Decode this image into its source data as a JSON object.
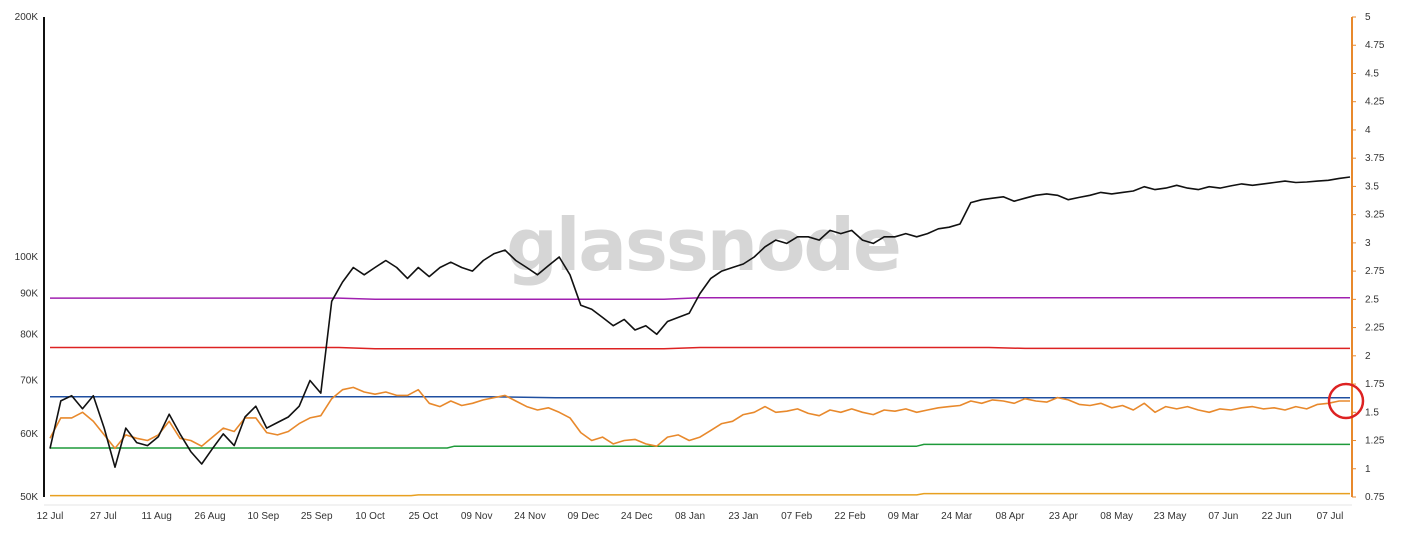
{
  "watermark": "glassnode",
  "colors": {
    "price": "#111111",
    "ratio": "#e8892c",
    "purple": "#a020b0",
    "red": "#dd2222",
    "blue": "#1f4fa0",
    "green": "#1e9a3a",
    "gold": "#e8a020",
    "right_axis": "#e8892c",
    "highlight": "#dd2222"
  },
  "chart_data": {
    "type": "line",
    "title": "",
    "x_tick_labels": [
      "12 Jul",
      "27 Jul",
      "11 Aug",
      "26 Aug",
      "10 Sep",
      "25 Sep",
      "10 Oct",
      "25 Oct",
      "09 Nov",
      "24 Nov",
      "09 Dec",
      "24 Dec",
      "08 Jan",
      "23 Jan",
      "07 Feb",
      "22 Feb",
      "09 Mar",
      "24 Mar",
      "08 Apr",
      "23 Apr",
      "08 May",
      "23 May",
      "07 Jun",
      "22 Jun",
      "07 Jul"
    ],
    "left_axis": {
      "scale": "log",
      "ylim": [
        50000,
        200000
      ],
      "tick_values": [
        50000,
        60000,
        70000,
        80000,
        90000,
        100000,
        200000
      ],
      "tick_labels": [
        "50K",
        "60K",
        "70K",
        "80K",
        "90K",
        "100K",
        "200K"
      ]
    },
    "right_axis": {
      "scale": "linear",
      "ylim": [
        0.75,
        5
      ],
      "tick_values": [
        0.75,
        1,
        1.25,
        1.5,
        1.75,
        2,
        2.25,
        2.5,
        2.75,
        3,
        3.25,
        3.5,
        3.75,
        4,
        4.25,
        4.5,
        4.75,
        5
      ],
      "tick_labels": [
        "0.75",
        "1",
        "1.25",
        "1.5",
        "1.75",
        "2",
        "2.25",
        "2.5",
        "2.75",
        "3",
        "3.25",
        "3.5",
        "3.75",
        "4",
        "4.25",
        "4.5",
        "4.75",
        "5"
      ]
    },
    "series": [
      {
        "axis": "left",
        "color_key": "price",
        "x": [
          0,
          3,
          6,
          9,
          12,
          15,
          18,
          21,
          24,
          27,
          30,
          33,
          36,
          39,
          42,
          45,
          48,
          51,
          54,
          57,
          60,
          63,
          66,
          69,
          72,
          75,
          78,
          81,
          84,
          87,
          90,
          93,
          96,
          99,
          102,
          105,
          108,
          111,
          114,
          117,
          120,
          123,
          126,
          129,
          132,
          135,
          138,
          141,
          144,
          147,
          150,
          153,
          156,
          159,
          162,
          165,
          168,
          171,
          174,
          177,
          180,
          183,
          186,
          189,
          192,
          195,
          198,
          201,
          204,
          207,
          210,
          213,
          216,
          219,
          222,
          225,
          228,
          231,
          234,
          237,
          240,
          243,
          246,
          249,
          252,
          255,
          258,
          261,
          264,
          267,
          270,
          273,
          276,
          279,
          282,
          285,
          288,
          291,
          294,
          297,
          300,
          303,
          306,
          309,
          312,
          315,
          318,
          321,
          324,
          327,
          330,
          333,
          336,
          339,
          342,
          345,
          348,
          351,
          354,
          357,
          360
        ],
        "y": [
          57500,
          66000,
          67000,
          64500,
          67000,
          61000,
          54500,
          61000,
          58500,
          58000,
          59500,
          63500,
          60000,
          57000,
          55000,
          57500,
          60000,
          58000,
          63000,
          65000,
          61000,
          62000,
          63000,
          65000,
          70000,
          67500,
          88000,
          93000,
          97000,
          95000,
          97000,
          99000,
          97000,
          94000,
          97000,
          94500,
          97000,
          98500,
          97000,
          96000,
          99000,
          101000,
          102000,
          99000,
          97000,
          95000,
          97500,
          100000,
          95000,
          87000,
          86000,
          84000,
          82000,
          83500,
          81000,
          82000,
          80000,
          83000,
          84000,
          85000,
          90000,
          94000,
          96000,
          97000,
          98000,
          100000,
          103000,
          105000,
          104000,
          106000,
          106000,
          105000,
          108000,
          107000,
          108000,
          105000,
          104000,
          106000,
          106000,
          107000,
          106000,
          107000,
          108500,
          109000,
          110000,
          117000,
          118000,
          118500,
          119000,
          117500,
          118500,
          119500,
          120000,
          119500,
          118000,
          118800,
          119500,
          120500,
          120000,
          120500,
          121000,
          122500,
          121500,
          122000,
          123000,
          122000,
          121500,
          122500,
          122000,
          122800,
          123500,
          123000,
          123500,
          124000,
          124500,
          124000,
          124200,
          124500,
          124800,
          125500,
          126000
        ]
      },
      {
        "axis": "right",
        "color_key": "ratio",
        "x": [
          0,
          3,
          6,
          9,
          12,
          15,
          18,
          21,
          24,
          27,
          30,
          33,
          36,
          39,
          42,
          45,
          48,
          51,
          54,
          57,
          60,
          63,
          66,
          69,
          72,
          75,
          78,
          81,
          84,
          87,
          90,
          93,
          96,
          99,
          102,
          105,
          108,
          111,
          114,
          117,
          120,
          123,
          126,
          129,
          132,
          135,
          138,
          141,
          144,
          147,
          150,
          153,
          156,
          159,
          162,
          165,
          168,
          171,
          174,
          177,
          180,
          183,
          186,
          189,
          192,
          195,
          198,
          201,
          204,
          207,
          210,
          213,
          216,
          219,
          222,
          225,
          228,
          231,
          234,
          237,
          240,
          243,
          246,
          249,
          252,
          255,
          258,
          261,
          264,
          267,
          270,
          273,
          276,
          279,
          282,
          285,
          288,
          291,
          294,
          297,
          300,
          303,
          306,
          309,
          312,
          315,
          318,
          321,
          324,
          327,
          330,
          333,
          336,
          339,
          342,
          345,
          348,
          351,
          354,
          357,
          360
        ],
        "y": [
          1.27,
          1.45,
          1.45,
          1.5,
          1.42,
          1.3,
          1.18,
          1.3,
          1.27,
          1.25,
          1.3,
          1.42,
          1.27,
          1.25,
          1.2,
          1.28,
          1.36,
          1.33,
          1.45,
          1.45,
          1.32,
          1.3,
          1.33,
          1.4,
          1.45,
          1.47,
          1.62,
          1.7,
          1.72,
          1.68,
          1.66,
          1.68,
          1.65,
          1.65,
          1.7,
          1.58,
          1.55,
          1.6,
          1.56,
          1.58,
          1.61,
          1.63,
          1.65,
          1.6,
          1.55,
          1.52,
          1.54,
          1.5,
          1.45,
          1.32,
          1.25,
          1.28,
          1.22,
          1.25,
          1.26,
          1.22,
          1.2,
          1.28,
          1.3,
          1.25,
          1.28,
          1.34,
          1.4,
          1.42,
          1.48,
          1.5,
          1.55,
          1.5,
          1.51,
          1.53,
          1.49,
          1.47,
          1.52,
          1.5,
          1.53,
          1.5,
          1.48,
          1.52,
          1.51,
          1.53,
          1.5,
          1.52,
          1.54,
          1.55,
          1.56,
          1.6,
          1.58,
          1.61,
          1.6,
          1.58,
          1.62,
          1.6,
          1.59,
          1.63,
          1.61,
          1.57,
          1.56,
          1.58,
          1.54,
          1.56,
          1.52,
          1.58,
          1.5,
          1.55,
          1.53,
          1.55,
          1.52,
          1.5,
          1.53,
          1.52,
          1.54,
          1.55,
          1.53,
          1.54,
          1.52,
          1.55,
          1.53,
          1.57,
          1.58,
          1.6,
          1.6
        ]
      },
      {
        "axis": "left",
        "color_key": "purple",
        "x": [
          0,
          80,
          90,
          170,
          180,
          360
        ],
        "y": [
          88800,
          88800,
          88500,
          88500,
          88900,
          88900
        ]
      },
      {
        "axis": "left",
        "color_key": "red",
        "x": [
          0,
          80,
          90,
          170,
          180,
          260,
          270,
          360
        ],
        "y": [
          77000,
          77000,
          76700,
          76700,
          77000,
          77000,
          76800,
          76800
        ]
      },
      {
        "axis": "left",
        "color_key": "blue",
        "x": [
          0,
          120,
          140,
          360
        ],
        "y": [
          66800,
          66800,
          66600,
          66600
        ]
      },
      {
        "axis": "left",
        "color_key": "green",
        "x": [
          0,
          110,
          112,
          240,
          242,
          360
        ],
        "y": [
          57600,
          57600,
          57900,
          57900,
          58200,
          58200
        ]
      },
      {
        "axis": "left",
        "color_key": "gold",
        "x": [
          0,
          100,
          102,
          240,
          242,
          360
        ],
        "y": [
          50200,
          50200,
          50300,
          50300,
          50500,
          50500
        ]
      }
    ],
    "annotation": {
      "type": "circle",
      "color_key": "highlight",
      "x": 360,
      "axis": "right",
      "y": 1.6
    }
  }
}
